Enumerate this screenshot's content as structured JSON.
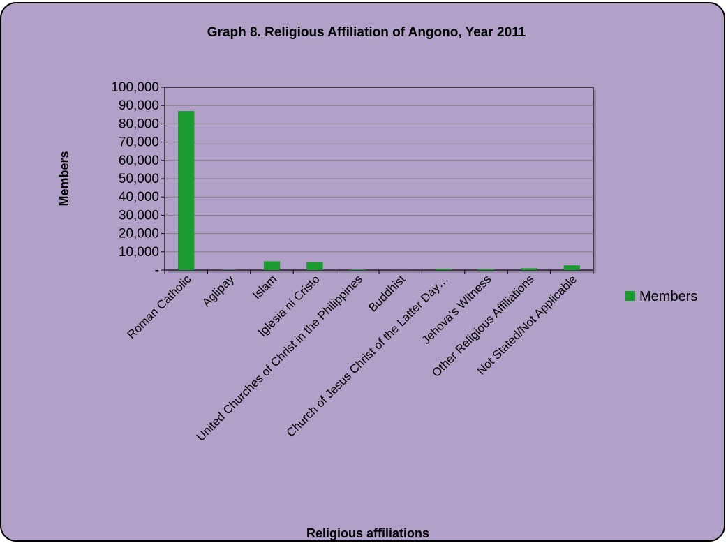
{
  "chart_data": {
    "type": "bar",
    "title": "Graph 8. Religious Affiliation of Angono, Year 2011",
    "xlabel": "Religious affiliations",
    "ylabel": "Members",
    "categories": [
      "Roman Catholic",
      "Aglipay",
      "Islam",
      "Iglesia ni Cristo",
      "United Churches of Christ in the Philippines",
      "Buddhist",
      "Church of Jesus Christ of the Latter Day…",
      "Jehova's Witness",
      "Other Religious Affiliations",
      "Not Stated/Not Applicable"
    ],
    "series": [
      {
        "name": "Members",
        "values": [
          87000,
          100,
          4800,
          4200,
          300,
          50,
          700,
          600,
          1000,
          2600
        ]
      }
    ],
    "ylim": [
      0,
      100000
    ],
    "yticks": [
      {
        "value": 0,
        "label": "-"
      },
      {
        "value": 10000,
        "label": "10,000"
      },
      {
        "value": 20000,
        "label": "20,000"
      },
      {
        "value": 30000,
        "label": "30,000"
      },
      {
        "value": 40000,
        "label": "40,000"
      },
      {
        "value": 50000,
        "label": "50,000"
      },
      {
        "value": 60000,
        "label": "60,000"
      },
      {
        "value": 70000,
        "label": "70,000"
      },
      {
        "value": 80000,
        "label": "80,000"
      },
      {
        "value": 90000,
        "label": "90,000"
      },
      {
        "value": 100000,
        "label": "100,000"
      }
    ],
    "grid": true,
    "legend_position": "right",
    "colors": {
      "background": "#b1a0c7",
      "plot_area": "#b1a0c7",
      "bar": "#1a9a2f",
      "gridline": "#808080"
    }
  }
}
